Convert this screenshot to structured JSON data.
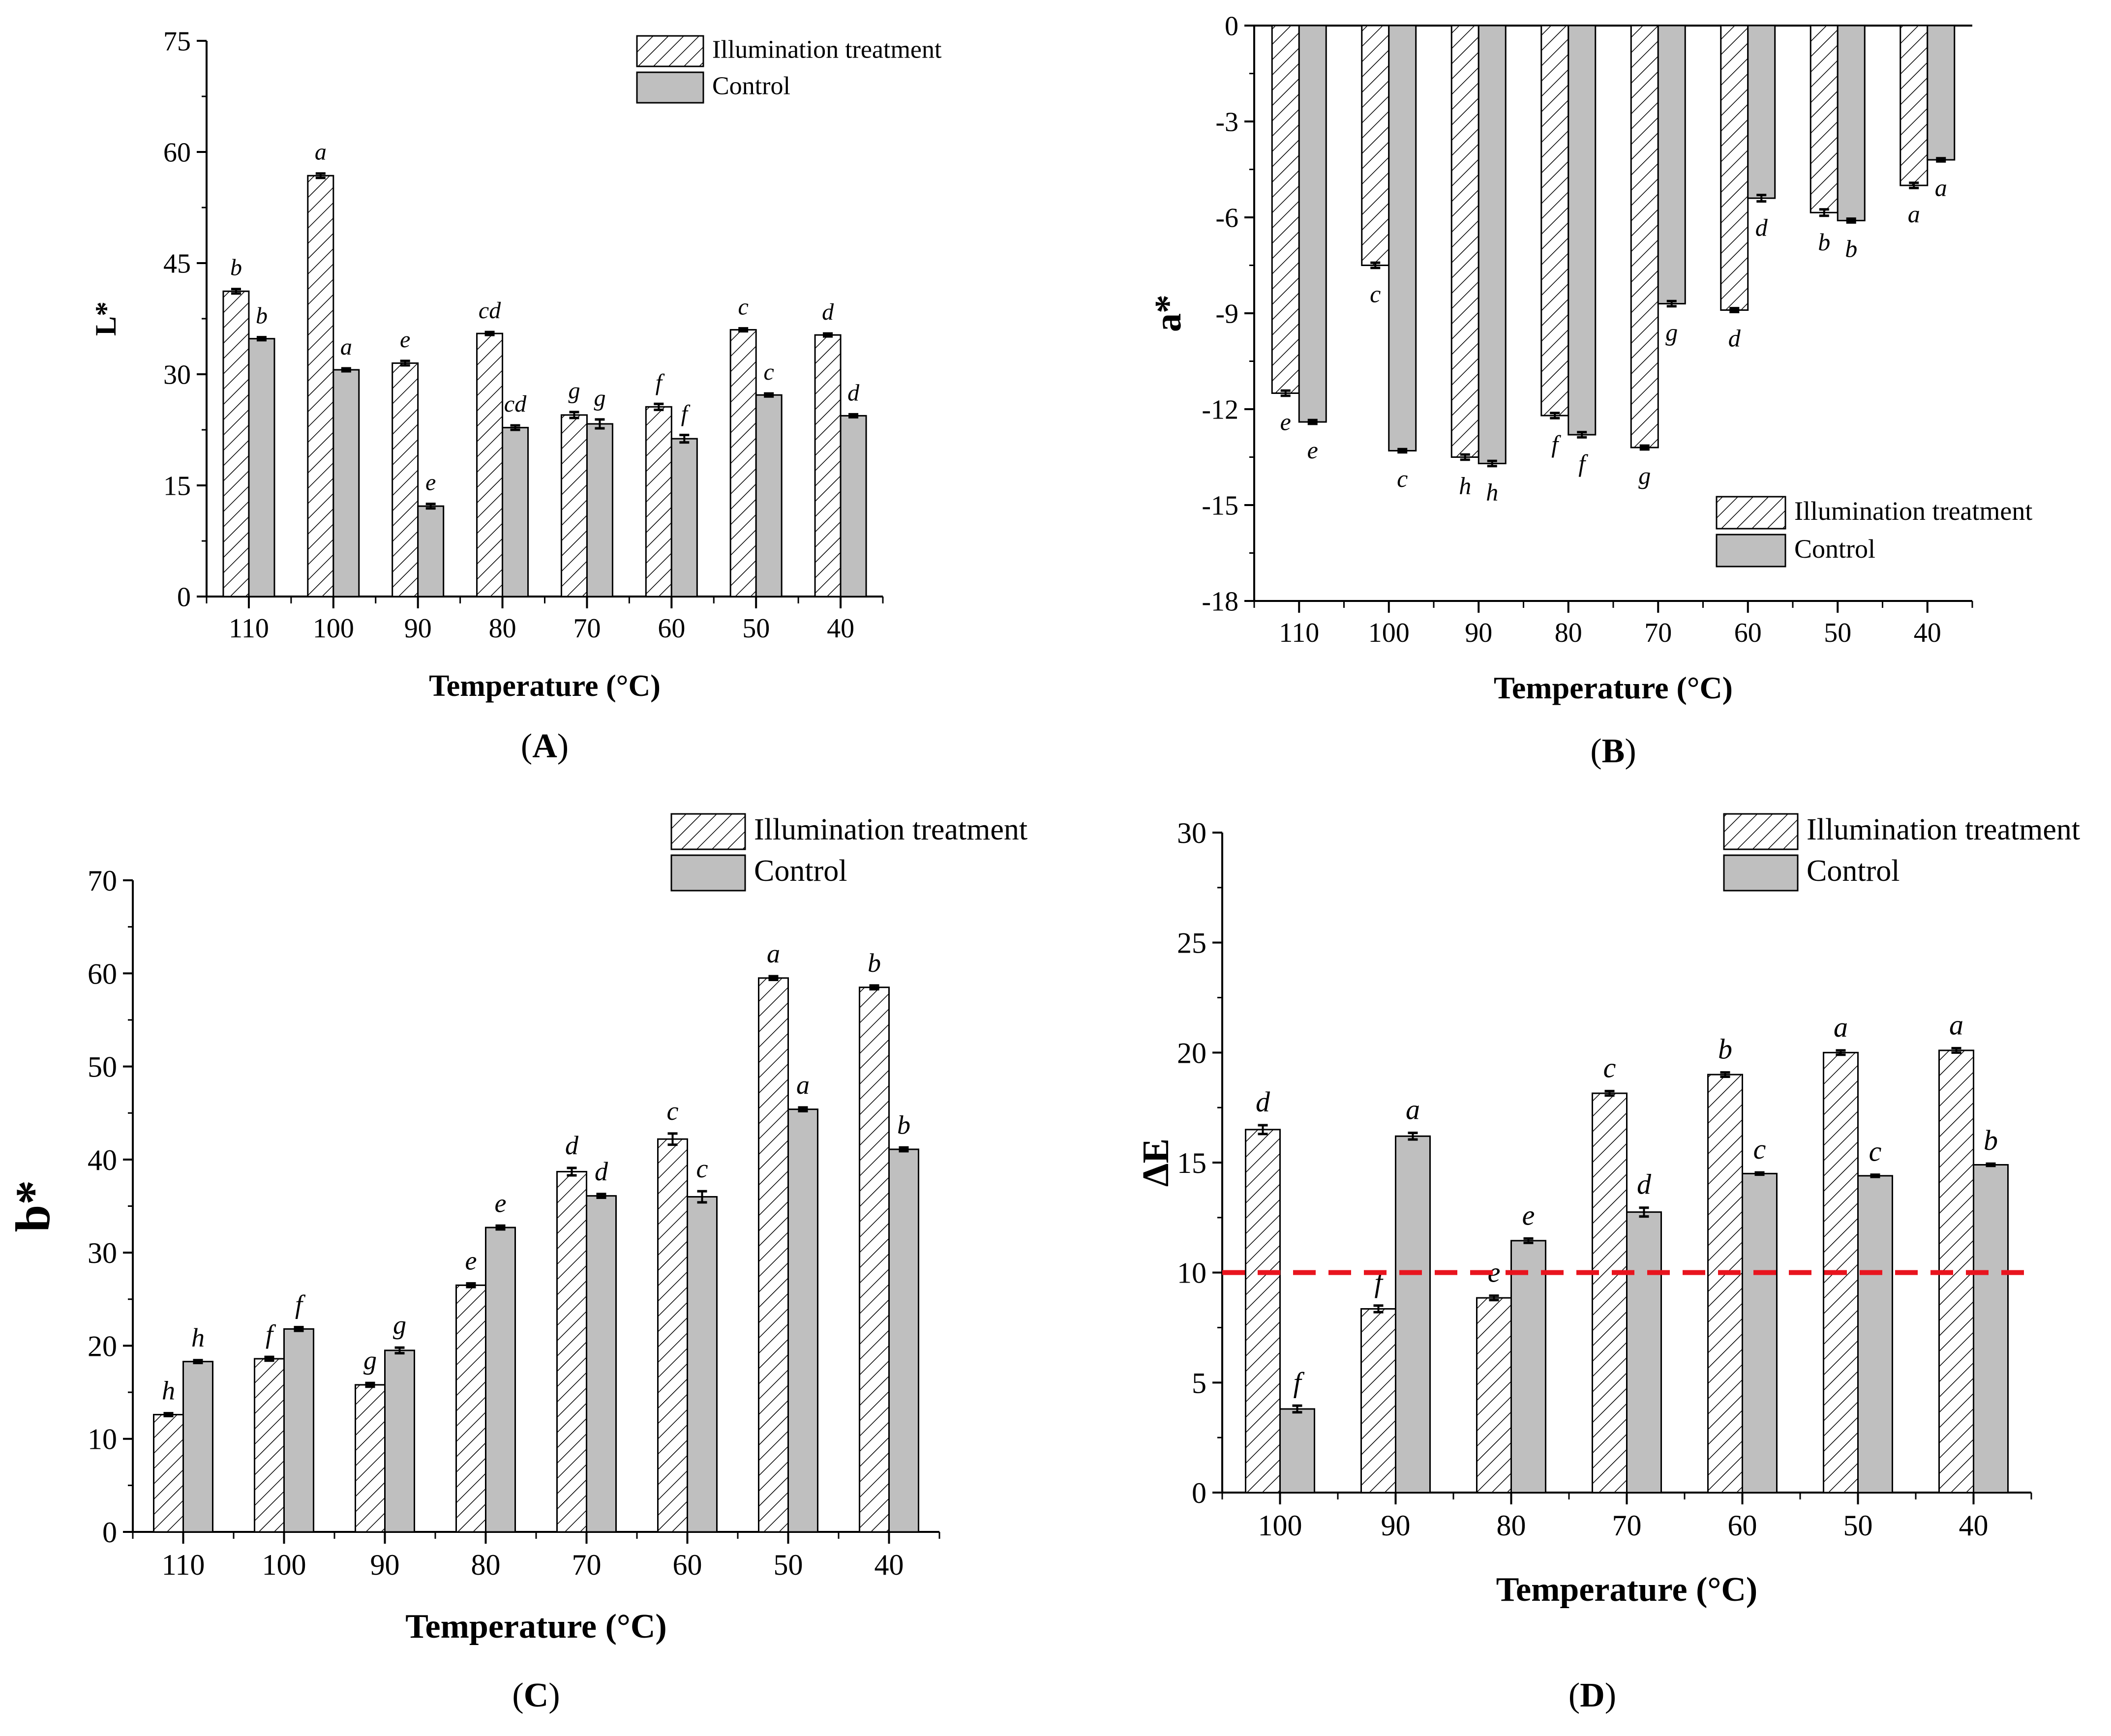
{
  "legend_labels": {
    "treatment": "Illumination treatment",
    "control": "Control"
  },
  "threshold_line": {
    "value": 10,
    "color": "#e8141e"
  },
  "colors": {
    "control_fill": "#bfbfbf",
    "bar_stroke": "#000000"
  },
  "chart_data": [
    {
      "id": "A",
      "panel_label": "(A)",
      "type": "bar",
      "ylabel": "L*",
      "xlabel": "Temperature (°C)",
      "ylim": [
        0,
        75
      ],
      "yticks": [
        0,
        15,
        30,
        45,
        60,
        75
      ],
      "categories": [
        "110",
        "100",
        "90",
        "80",
        "70",
        "60",
        "50",
        "40"
      ],
      "series": [
        {
          "name": "Illumination treatment",
          "values": [
            41.2,
            56.8,
            31.5,
            35.5,
            24.5,
            25.6,
            36.0,
            35.3
          ],
          "errors": [
            0.3,
            0.3,
            0.3,
            0.2,
            0.4,
            0.4,
            0.2,
            0.2
          ],
          "letters": [
            "b",
            "a",
            "e",
            "cd",
            "g",
            "f",
            "c",
            "d"
          ]
        },
        {
          "name": "Control",
          "values": [
            34.8,
            30.6,
            12.2,
            22.8,
            23.3,
            21.3,
            27.2,
            24.4
          ],
          "errors": [
            0.2,
            0.2,
            0.3,
            0.3,
            0.6,
            0.5,
            0.2,
            0.2
          ],
          "letters": [
            "b",
            "a",
            "e",
            "cd",
            "g",
            "f",
            "c",
            "d"
          ]
        }
      ],
      "legend": "top-right"
    },
    {
      "id": "B",
      "panel_label": "(B)",
      "type": "bar",
      "ylabel": "a*",
      "xlabel": "Temperature (°C)",
      "ylim": [
        -18,
        0
      ],
      "yticks": [
        0,
        -3,
        -6,
        -9,
        -12,
        -15,
        -18
      ],
      "categories": [
        "110",
        "100",
        "90",
        "80",
        "70",
        "60",
        "50",
        "40"
      ],
      "series": [
        {
          "name": "Illumination treatment",
          "values": [
            -11.5,
            -7.5,
            -13.5,
            -12.2,
            -13.2,
            -8.9,
            -5.85,
            -5.0
          ],
          "errors": [
            0.08,
            0.08,
            0.08,
            0.08,
            0.06,
            0.06,
            0.1,
            0.08
          ],
          "letters": [
            "e",
            "c",
            "h",
            "f",
            "g",
            "d",
            "b",
            "a"
          ]
        },
        {
          "name": "Control",
          "values": [
            -12.4,
            -13.3,
            -13.7,
            -12.8,
            -8.7,
            -5.4,
            -6.1,
            -4.2
          ],
          "errors": [
            0.06,
            0.05,
            0.08,
            0.08,
            0.08,
            0.1,
            0.06,
            0.05
          ],
          "letters": [
            "e",
            "c",
            "h",
            "f",
            "g",
            "d",
            "b",
            "a"
          ]
        }
      ],
      "legend": "bottom-right"
    },
    {
      "id": "C",
      "panel_label": "(C)",
      "type": "bar",
      "ylabel": "b*",
      "xlabel": "Temperature (°C)",
      "ylim": [
        0,
        70
      ],
      "yticks": [
        0,
        10,
        20,
        30,
        40,
        50,
        60,
        70
      ],
      "categories": [
        "110",
        "100",
        "90",
        "80",
        "70",
        "60",
        "50",
        "40"
      ],
      "series": [
        {
          "name": "Illumination treatment",
          "values": [
            12.6,
            18.6,
            15.8,
            26.5,
            38.7,
            42.2,
            59.5,
            58.5
          ],
          "errors": [
            0.15,
            0.2,
            0.2,
            0.2,
            0.4,
            0.6,
            0.2,
            0.2
          ],
          "letters": [
            "h",
            "f",
            "g",
            "e",
            "d",
            "c",
            "a",
            "b"
          ]
        },
        {
          "name": "Control",
          "values": [
            18.3,
            21.8,
            19.5,
            32.7,
            36.1,
            36.0,
            45.4,
            41.1
          ],
          "errors": [
            0.15,
            0.2,
            0.3,
            0.2,
            0.2,
            0.6,
            0.2,
            0.2
          ],
          "letters": [
            "h",
            "f",
            "g",
            "e",
            "d",
            "c",
            "a",
            "b"
          ]
        }
      ],
      "legend": "top-right"
    },
    {
      "id": "D",
      "panel_label": "(D)",
      "type": "bar",
      "ylabel": "ΔE",
      "xlabel": "Temperature (°C)",
      "ylim": [
        0,
        30
      ],
      "yticks": [
        0,
        5,
        10,
        15,
        20,
        25,
        30
      ],
      "categories": [
        "100",
        "90",
        "80",
        "70",
        "60",
        "50",
        "40"
      ],
      "series": [
        {
          "name": "Illumination treatment",
          "values": [
            16.5,
            8.35,
            8.85,
            18.15,
            19.0,
            20.0,
            20.1
          ],
          "errors": [
            0.2,
            0.15,
            0.1,
            0.1,
            0.1,
            0.1,
            0.1
          ],
          "letters": [
            "d",
            "f",
            "e",
            "c",
            "b",
            "a",
            "a"
          ]
        },
        {
          "name": "Control",
          "values": [
            3.8,
            16.2,
            11.45,
            12.75,
            14.5,
            14.4,
            14.9
          ],
          "errors": [
            0.15,
            0.15,
            0.1,
            0.2,
            0.05,
            0.05,
            0.05
          ],
          "letters": [
            "f",
            "a",
            "e",
            "d",
            "c",
            "c",
            "b"
          ]
        }
      ],
      "legend": "top-right"
    }
  ]
}
